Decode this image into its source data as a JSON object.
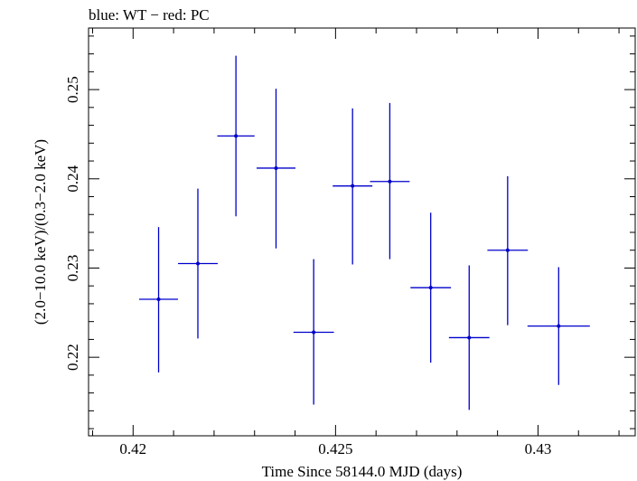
{
  "chart_data": {
    "type": "scatter",
    "title": "blue: WT − red: PC",
    "xlabel": "Time Since 58144.0 MJD (days)",
    "ylabel": "(2.0−10.0 keV)/(0.3−2.0 keV)",
    "xlim": [
      0.4189,
      0.4324
    ],
    "ylim": [
      0.2112,
      0.2569
    ],
    "xticks": [
      0.42,
      0.425,
      0.43
    ],
    "xtick_labels": [
      "0.42",
      "0.425",
      "0.43"
    ],
    "yticks": [
      0.22,
      0.23,
      0.24,
      0.25
    ],
    "ytick_labels": [
      "0.22",
      "0.23",
      "0.24",
      "0.25"
    ],
    "grid": false,
    "series": [
      {
        "color": "#0000cc",
        "points": [
          {
            "x": 0.42063,
            "y": 0.2265,
            "xerr": 0.00048,
            "yerr_low": 0.0082,
            "yerr_high": 0.0081
          },
          {
            "x": 0.4216,
            "y": 0.2305,
            "xerr": 0.00049,
            "yerr_low": 0.0084,
            "yerr_high": 0.0084
          },
          {
            "x": 0.42254,
            "y": 0.2448,
            "xerr": 0.00046,
            "yerr_low": 0.009,
            "yerr_high": 0.009
          },
          {
            "x": 0.42353,
            "y": 0.2412,
            "xerr": 0.00048,
            "yerr_low": 0.009,
            "yerr_high": 0.0089
          },
          {
            "x": 0.42446,
            "y": 0.2228,
            "xerr": 0.0005,
            "yerr_low": 0.0081,
            "yerr_high": 0.0082
          },
          {
            "x": 0.42542,
            "y": 0.2392,
            "xerr": 0.00049,
            "yerr_low": 0.0088,
            "yerr_high": 0.0087
          },
          {
            "x": 0.42634,
            "y": 0.2397,
            "xerr": 0.00049,
            "yerr_low": 0.0087,
            "yerr_high": 0.0088
          },
          {
            "x": 0.42735,
            "y": 0.2278,
            "xerr": 0.0005,
            "yerr_low": 0.0084,
            "yerr_high": 0.0084
          },
          {
            "x": 0.4283,
            "y": 0.2222,
            "xerr": 0.0005,
            "yerr_low": 0.0081,
            "yerr_high": 0.0081
          },
          {
            "x": 0.42925,
            "y": 0.232,
            "xerr": 0.0005,
            "yerr_low": 0.0084,
            "yerr_high": 0.0083
          },
          {
            "x": 0.43051,
            "y": 0.2235,
            "xerr": 0.00077,
            "yerr_low": 0.0066,
            "yerr_high": 0.0066
          }
        ]
      }
    ]
  }
}
